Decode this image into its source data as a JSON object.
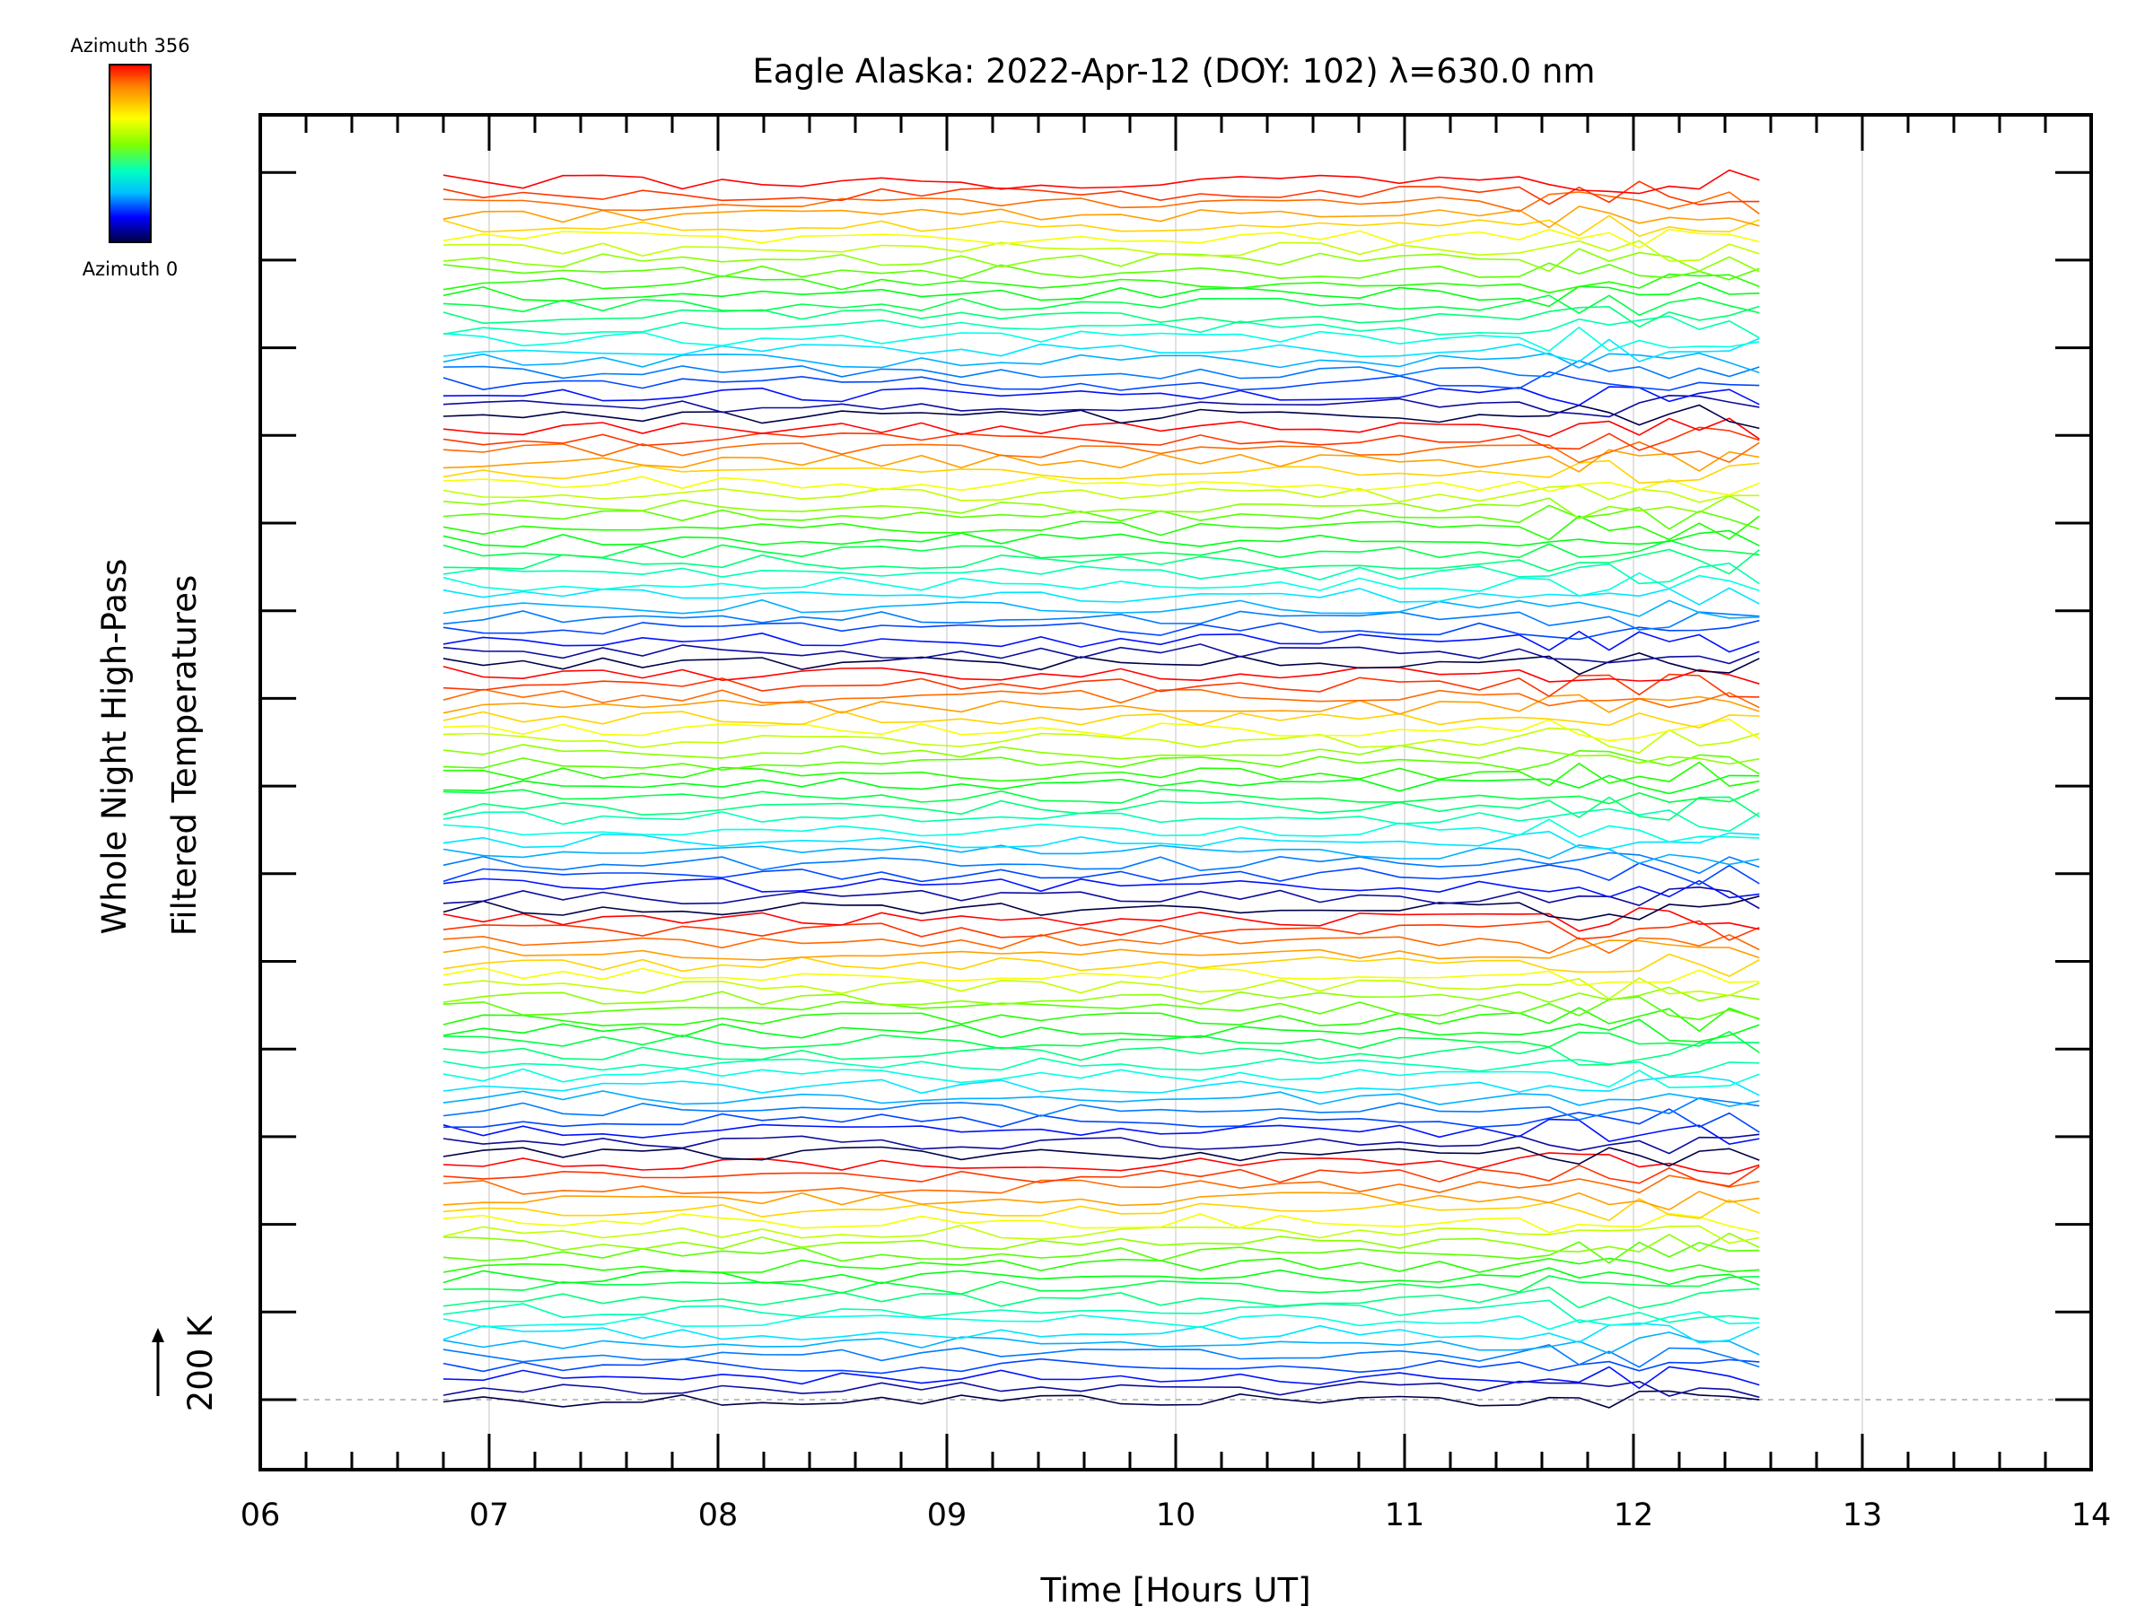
{
  "chart_data": {
    "type": "line",
    "title": "Eagle Alaska: 2022-Apr-12 (DOY: 102) λ=630.0 nm",
    "xlabel": "Time [Hours UT]",
    "ylabel_line1": "Whole Night High-Pass",
    "ylabel_line2": "Filtered Temperatures",
    "scale_label": "200 K",
    "xlim": [
      6,
      14
    ],
    "x_ticks": [
      "06",
      "07",
      "08",
      "09",
      "10",
      "11",
      "12",
      "13",
      "14"
    ],
    "x_range_of_data": [
      6.8,
      12.55
    ],
    "series_count": 110,
    "colorbar": {
      "top_label": "Azimuth 356",
      "bottom_label": "Azimuth 0",
      "colors": [
        "#ff0000",
        "#ff8000",
        "#ffff00",
        "#80ff00",
        "#00ffc0",
        "#00c0ff",
        "#0000ff",
        "#000040"
      ]
    }
  }
}
